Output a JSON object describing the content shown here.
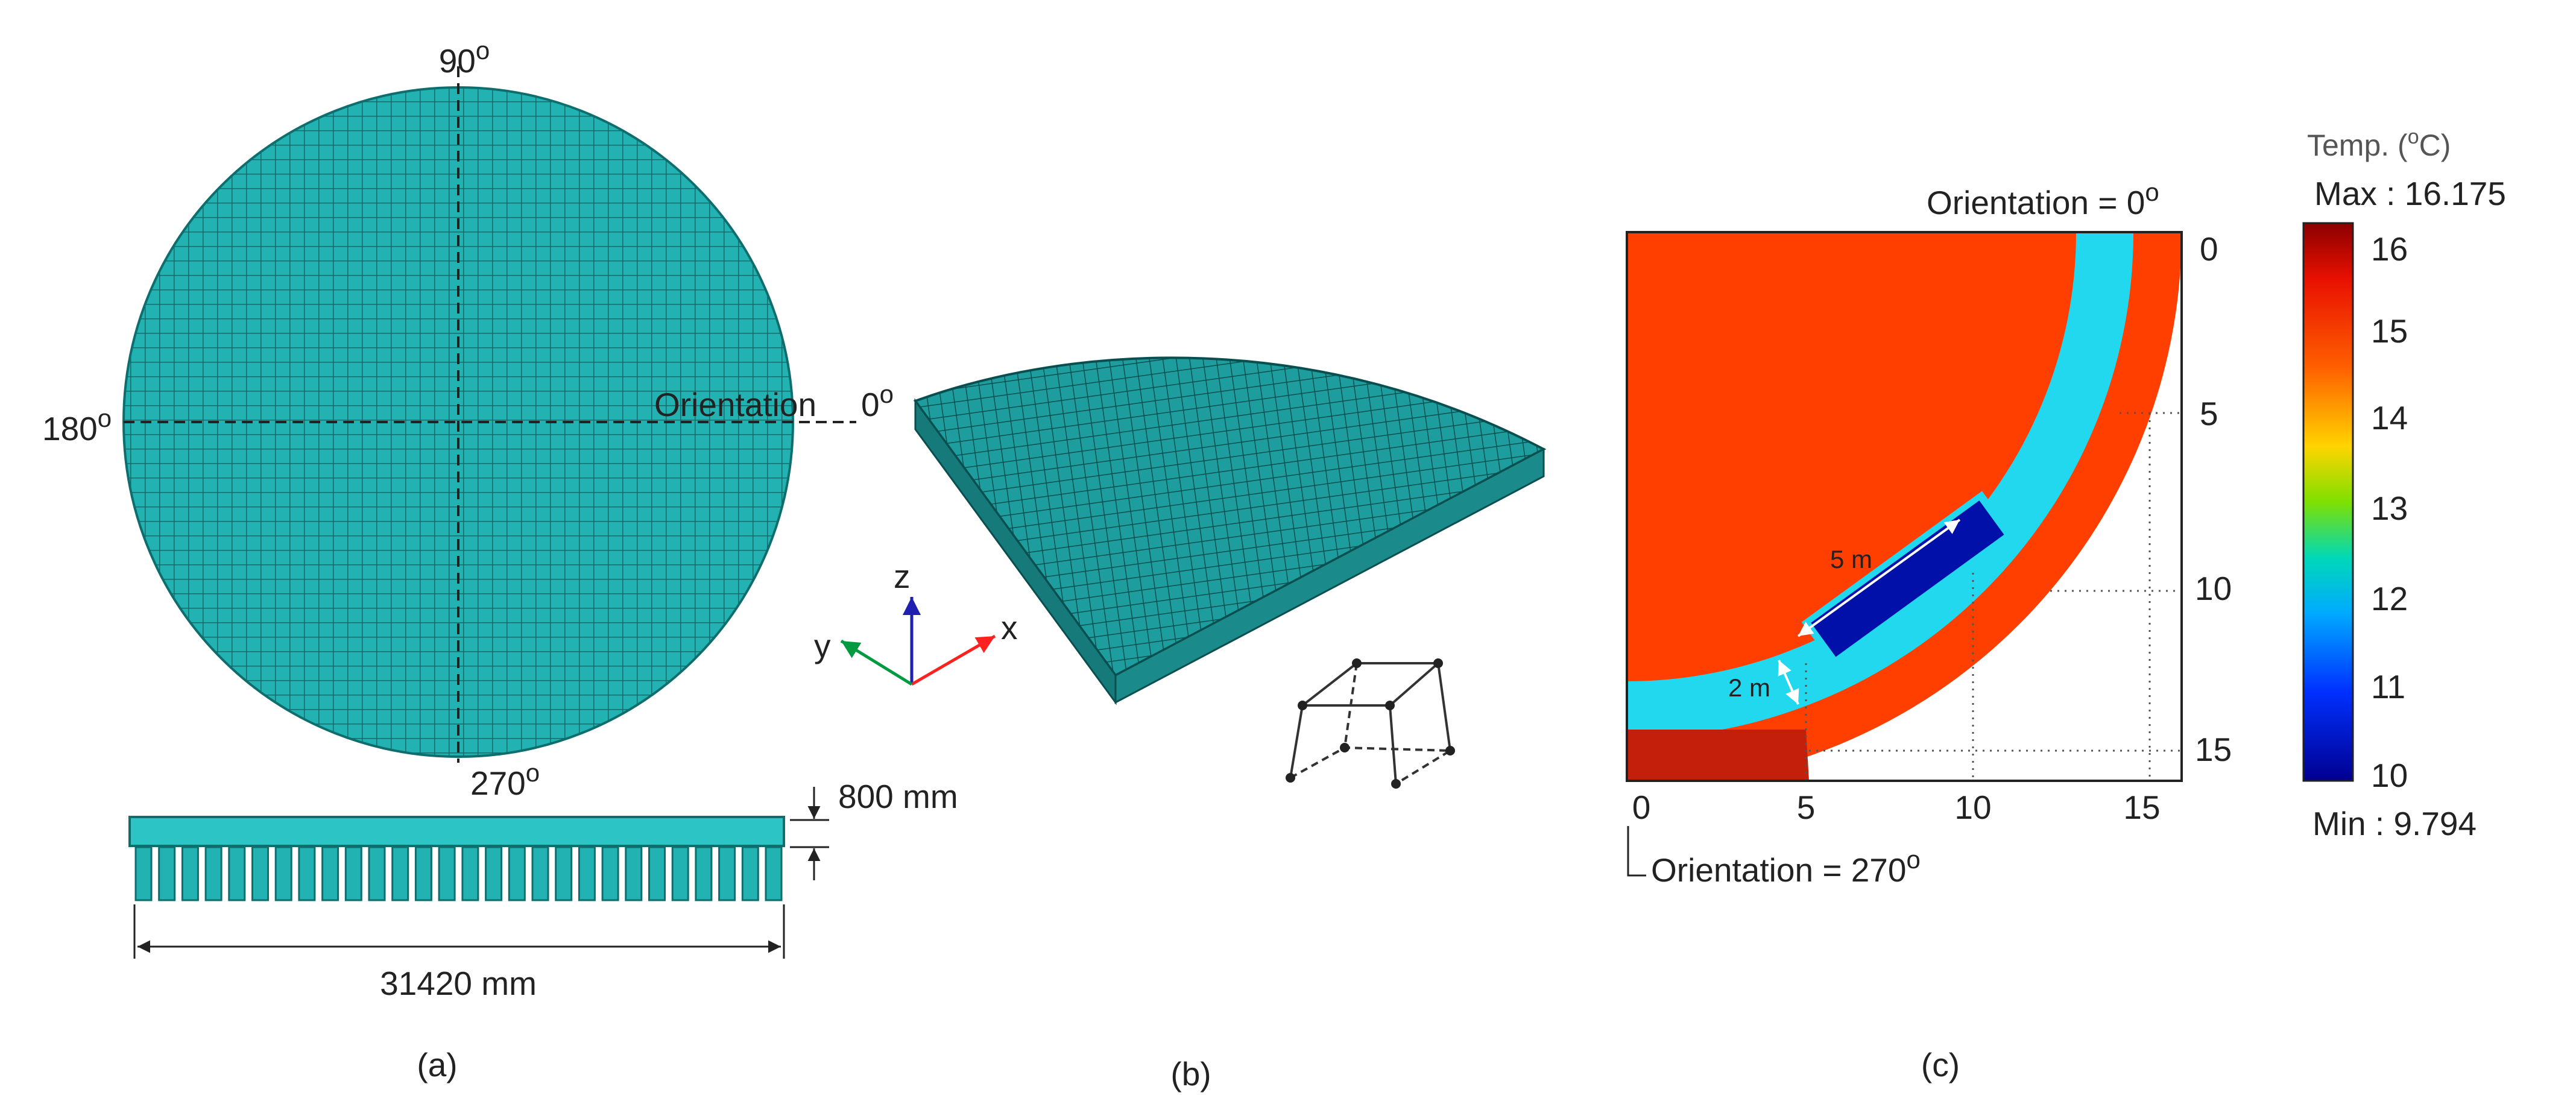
{
  "panel_a": {
    "angle_90": "90",
    "angle_180": "180",
    "angle_270": "270",
    "angle_0": "0",
    "degree_symbol": "o",
    "orientation_label": "Orientation",
    "thickness_label": "800 mm",
    "width_label": "31420 mm",
    "caption": "(a)"
  },
  "panel_b": {
    "axis_x": "x",
    "axis_y": "y",
    "axis_z": "z",
    "caption": "(b)"
  },
  "panel_c": {
    "top_orientation": "Orientation = 0",
    "bottom_orientation": "Orientation = 270",
    "degree_symbol": "o",
    "x_ticks": [
      "0",
      "5",
      "10",
      "15"
    ],
    "y_ticks": [
      "0",
      "5",
      "10",
      "15"
    ],
    "dim_length": "5 m",
    "dim_width": "2 m",
    "colorbar": {
      "title": "Temp. (",
      "title_unit": "C)",
      "degree_symbol": "o",
      "max_label": "Max : 16.175",
      "min_label": "Min : 9.794",
      "ticks": [
        "16",
        "15",
        "14",
        "13",
        "12",
        "11",
        "10"
      ]
    },
    "caption": "(c)"
  },
  "colors": {
    "mesh_fill": "#23b2b2",
    "mesh_line": "#0e6e6e",
    "hot": "#ff3f00",
    "dark_hot": "#c41f0a",
    "cool_band": "#22d8ee",
    "cold_block": "#0010a8"
  }
}
